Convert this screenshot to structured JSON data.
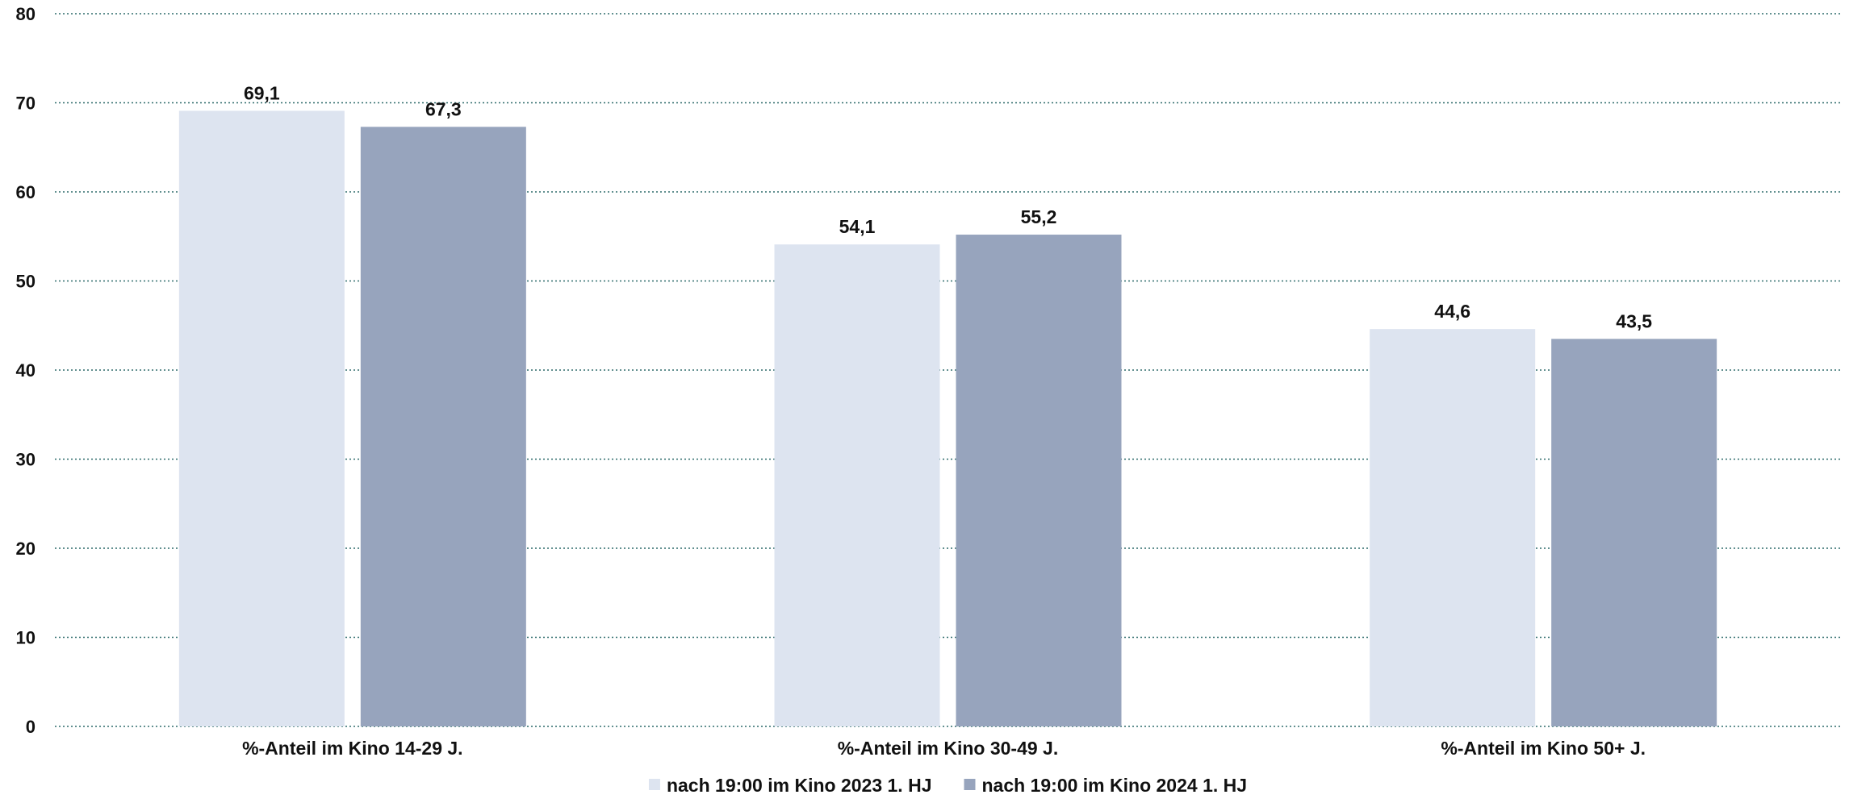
{
  "chart_data": {
    "type": "bar",
    "categories": [
      "%-Anteil im Kino 14-29 J.",
      "%-Anteil im Kino 30-49 J.",
      "%-Anteil im Kino 50+ J."
    ],
    "series": [
      {
        "name": "nach 19:00 im Kino 2023 1. HJ",
        "values": [
          69.1,
          54.1,
          44.6
        ],
        "labels": [
          "69,1",
          "54,1",
          "44,6"
        ],
        "color": "#dde4f0"
      },
      {
        "name": "nach 19:00 im Kino 2024 1. HJ",
        "values": [
          67.3,
          55.2,
          43.5
        ],
        "labels": [
          "67,3",
          "55,2",
          "43,5"
        ],
        "color": "#97a4bd"
      }
    ],
    "title": "",
    "xlabel": "",
    "ylabel": "",
    "ylim": [
      0,
      80
    ],
    "yticks": [
      "0",
      "10",
      "20",
      "30",
      "40",
      "50",
      "60",
      "70",
      "80"
    ],
    "grid": true,
    "grid_style": "dotted",
    "grid_color": "#2e6b6b",
    "legend_position": "bottom-center"
  }
}
